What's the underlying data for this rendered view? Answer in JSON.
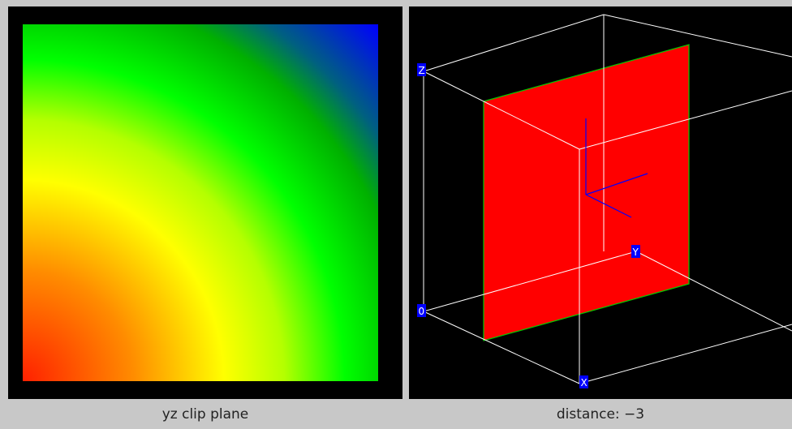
{
  "left_view": {
    "caption": "yz clip plane",
    "colors": {
      "red": "#ff2000",
      "orange": "#ff8c00",
      "yellow": "#ffff00",
      "yellow_green": "#b4ff00",
      "green": "#00ff00",
      "dark_green": "#00b000",
      "teal": "#006080",
      "blue": "#0000ff"
    }
  },
  "right_view": {
    "caption": "distance: −3",
    "plane_color": "#ff0000",
    "plane_edge_color": "#00cc00",
    "box_color": "#ffffff",
    "axes_color": "#0000ff",
    "corner_labels": {
      "z": "Z",
      "o": "0",
      "y": "Y",
      "x": "X"
    },
    "label_bg": "#0000ff"
  }
}
